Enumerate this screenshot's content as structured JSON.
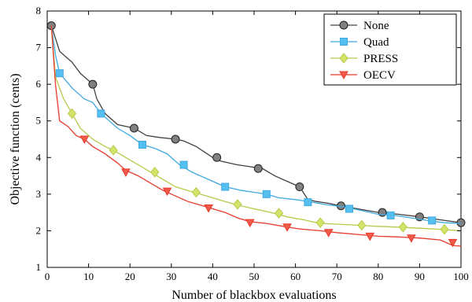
{
  "chart_data": {
    "type": "line",
    "title": "",
    "xlabel": "Number of blackbox evaluations",
    "ylabel": "Objective function (cents)",
    "xlim": [
      0,
      100
    ],
    "ylim": [
      1,
      8
    ],
    "xticks": [
      "0",
      "10",
      "20",
      "30",
      "40",
      "50",
      "60",
      "70",
      "80",
      "90",
      "100"
    ],
    "yticks": [
      "1",
      "2",
      "3",
      "4",
      "5",
      "6",
      "7",
      "8"
    ],
    "grid": false,
    "legend_position": "top-right",
    "series": [
      {
        "name": "None",
        "color": "#404040",
        "marker_fill": "#808080",
        "marker": "circle",
        "line": [
          [
            1,
            7.6
          ],
          [
            3,
            6.9
          ],
          [
            6,
            6.6
          ],
          [
            8,
            6.3
          ],
          [
            11,
            6.0
          ],
          [
            12,
            5.6
          ],
          [
            14,
            5.2
          ],
          [
            17,
            4.9
          ],
          [
            21,
            4.8
          ],
          [
            24,
            4.6
          ],
          [
            27,
            4.55
          ],
          [
            31,
            4.5
          ],
          [
            33,
            4.45
          ],
          [
            36,
            4.3
          ],
          [
            38,
            4.15
          ],
          [
            40,
            4.0
          ],
          [
            42,
            3.9
          ],
          [
            46,
            3.8
          ],
          [
            49,
            3.75
          ],
          [
            52,
            3.7
          ],
          [
            55,
            3.5
          ],
          [
            58,
            3.35
          ],
          [
            61,
            3.2
          ],
          [
            63,
            2.85
          ],
          [
            65,
            2.8
          ],
          [
            68,
            2.75
          ],
          [
            70,
            2.7
          ],
          [
            75,
            2.6
          ],
          [
            80,
            2.5
          ],
          [
            85,
            2.45
          ],
          [
            90,
            2.38
          ],
          [
            95,
            2.3
          ],
          [
            100,
            2.22
          ]
        ],
        "markers": [
          [
            1,
            7.6
          ],
          [
            11,
            6.0
          ],
          [
            21,
            4.8
          ],
          [
            31,
            4.5
          ],
          [
            41,
            4.0
          ],
          [
            51,
            3.7
          ],
          [
            61,
            3.2
          ],
          [
            71,
            2.68
          ],
          [
            81,
            2.5
          ],
          [
            90,
            2.38
          ],
          [
            100,
            2.22
          ]
        ]
      },
      {
        "name": "Quad",
        "color": "#3fa9e0",
        "marker_fill": "#55bff0",
        "marker": "square",
        "line": [
          [
            1,
            7.6
          ],
          [
            2,
            6.8
          ],
          [
            3,
            6.3
          ],
          [
            6,
            5.9
          ],
          [
            9,
            5.6
          ],
          [
            11,
            5.5
          ],
          [
            13,
            5.2
          ],
          [
            15,
            5.0
          ],
          [
            17,
            4.8
          ],
          [
            20,
            4.6
          ],
          [
            23,
            4.35
          ],
          [
            26,
            4.25
          ],
          [
            29,
            4.1
          ],
          [
            32,
            3.8
          ],
          [
            35,
            3.6
          ],
          [
            38,
            3.45
          ],
          [
            41,
            3.3
          ],
          [
            43,
            3.2
          ],
          [
            47,
            3.1
          ],
          [
            50,
            3.05
          ],
          [
            53,
            3.0
          ],
          [
            56,
            2.9
          ],
          [
            60,
            2.85
          ],
          [
            63,
            2.8
          ],
          [
            67,
            2.72
          ],
          [
            72,
            2.65
          ],
          [
            76,
            2.55
          ],
          [
            80,
            2.45
          ],
          [
            84,
            2.42
          ],
          [
            88,
            2.35
          ],
          [
            92,
            2.28
          ],
          [
            96,
            2.22
          ],
          [
            100,
            2.2
          ]
        ],
        "markers": [
          [
            3,
            6.3
          ],
          [
            13,
            5.2
          ],
          [
            23,
            4.35
          ],
          [
            33,
            3.8
          ],
          [
            43,
            3.2
          ],
          [
            53,
            3.0
          ],
          [
            63,
            2.78
          ],
          [
            73,
            2.6
          ],
          [
            83,
            2.42
          ],
          [
            93,
            2.28
          ]
        ]
      },
      {
        "name": "PRESS",
        "color": "#b8c94a",
        "marker_fill": "#d4e36a",
        "marker": "diamond",
        "line": [
          [
            1,
            7.6
          ],
          [
            2,
            6.2
          ],
          [
            4,
            5.6
          ],
          [
            6,
            5.2
          ],
          [
            8,
            4.8
          ],
          [
            11,
            4.5
          ],
          [
            14,
            4.3
          ],
          [
            16,
            4.2
          ],
          [
            19,
            4.0
          ],
          [
            22,
            3.8
          ],
          [
            25,
            3.6
          ],
          [
            28,
            3.4
          ],
          [
            31,
            3.2
          ],
          [
            34,
            3.1
          ],
          [
            37,
            3.0
          ],
          [
            40,
            2.9
          ],
          [
            43,
            2.8
          ],
          [
            46,
            2.7
          ],
          [
            50,
            2.6
          ],
          [
            54,
            2.5
          ],
          [
            58,
            2.38
          ],
          [
            62,
            2.3
          ],
          [
            66,
            2.2
          ],
          [
            70,
            2.18
          ],
          [
            75,
            2.15
          ],
          [
            80,
            2.12
          ],
          [
            85,
            2.1
          ],
          [
            90,
            2.07
          ],
          [
            95,
            2.04
          ],
          [
            100,
            2.0
          ]
        ],
        "markers": [
          [
            6,
            5.2
          ],
          [
            16,
            4.2
          ],
          [
            26,
            3.6
          ],
          [
            36,
            3.05
          ],
          [
            46,
            2.72
          ],
          [
            56,
            2.48
          ],
          [
            66,
            2.22
          ],
          [
            76,
            2.15
          ],
          [
            86,
            2.1
          ],
          [
            96,
            2.04
          ]
        ]
      },
      {
        "name": "OECV",
        "color": "#e83a2a",
        "marker_fill": "#f05a4a",
        "marker": "triangle-down",
        "line": [
          [
            1,
            7.6
          ],
          [
            2,
            6.0
          ],
          [
            3,
            5.0
          ],
          [
            5,
            4.85
          ],
          [
            7,
            4.6
          ],
          [
            9,
            4.5
          ],
          [
            11,
            4.3
          ],
          [
            14,
            4.1
          ],
          [
            17,
            3.85
          ],
          [
            19,
            3.65
          ],
          [
            22,
            3.5
          ],
          [
            25,
            3.3
          ],
          [
            28,
            3.1
          ],
          [
            31,
            2.95
          ],
          [
            34,
            2.8
          ],
          [
            37,
            2.7
          ],
          [
            40,
            2.6
          ],
          [
            43,
            2.5
          ],
          [
            46,
            2.35
          ],
          [
            49,
            2.25
          ],
          [
            53,
            2.2
          ],
          [
            57,
            2.12
          ],
          [
            61,
            2.05
          ],
          [
            66,
            2.0
          ],
          [
            70,
            1.95
          ],
          [
            75,
            1.9
          ],
          [
            80,
            1.85
          ],
          [
            85,
            1.83
          ],
          [
            90,
            1.8
          ],
          [
            95,
            1.75
          ],
          [
            98,
            1.6
          ],
          [
            100,
            1.58
          ]
        ],
        "markers": [
          [
            9,
            4.5
          ],
          [
            19,
            3.6
          ],
          [
            29,
            3.08
          ],
          [
            39,
            2.62
          ],
          [
            49,
            2.22
          ],
          [
            58,
            2.1
          ],
          [
            68,
            1.95
          ],
          [
            78,
            1.85
          ],
          [
            88,
            1.8
          ],
          [
            98,
            1.68
          ]
        ]
      }
    ]
  }
}
